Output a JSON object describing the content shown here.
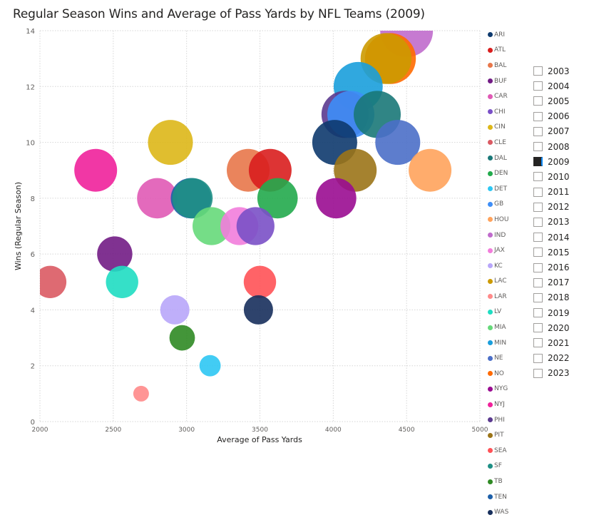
{
  "title": "Regular Season Wins and Average of Pass Yards by NFL Teams (2009)",
  "chart_data": {
    "type": "scatter",
    "subtype": "bubble",
    "title": "Regular Season Wins and Average of Pass Yards by NFL Teams (2009)",
    "xlabel": "Average of Pass Yards",
    "ylabel": "Wins (Regular Season)",
    "xlim": [
      2000,
      5000
    ],
    "ylim": [
      0,
      14
    ],
    "xticks": [
      "2000",
      "2500",
      "3000",
      "3500",
      "4000",
      "4500",
      "5000"
    ],
    "yticks": [
      "0",
      "2",
      "4",
      "6",
      "8",
      "10",
      "12",
      "14"
    ],
    "grid": true,
    "legend_position": "right",
    "points": [
      {
        "team": "IND",
        "x": 4500,
        "y": 14,
        "size": 14,
        "color": "#C06BCC"
      },
      {
        "team": "NO",
        "x": 4390,
        "y": 13,
        "size": 13,
        "color": "#FF6A00"
      },
      {
        "team": "LAC",
        "x": 4360,
        "y": 13,
        "size": 13,
        "color": "#CC9A00"
      },
      {
        "team": "MIN",
        "x": 4170,
        "y": 12,
        "size": 12,
        "color": "#1A9EDB"
      },
      {
        "team": "PHI",
        "x": 4080,
        "y": 11,
        "size": 11,
        "color": "#5B3A8F"
      },
      {
        "team": "GB",
        "x": 4120,
        "y": 11,
        "size": 11,
        "color": "#3E8EF7"
      },
      {
        "team": "DAL",
        "x": 4300,
        "y": 11,
        "size": 11,
        "color": "#1A7878"
      },
      {
        "team": "ARI",
        "x": 4010,
        "y": 10,
        "size": 10,
        "color": "#0E3A6E"
      },
      {
        "team": "NE",
        "x": 4440,
        "y": 10,
        "size": 10,
        "color": "#4B6FC8"
      },
      {
        "team": "CIN",
        "x": 2890,
        "y": 10,
        "size": 10,
        "color": "#DDB718"
      },
      {
        "team": "PIT",
        "x": 4150,
        "y": 9,
        "size": 9,
        "color": "#9B7418"
      },
      {
        "team": "HOU",
        "x": 4660,
        "y": 9,
        "size": 9,
        "color": "#FFA35C"
      },
      {
        "team": "BAL",
        "x": 3420,
        "y": 9,
        "size": 9,
        "color": "#E8774A"
      },
      {
        "team": "ATL",
        "x": 3570,
        "y": 9,
        "size": 9,
        "color": "#D91E1E"
      },
      {
        "team": "NYJ",
        "x": 2380,
        "y": 9,
        "size": 9,
        "color": "#F0219B"
      },
      {
        "team": "NYG",
        "x": 4020,
        "y": 8,
        "size": 8,
        "color": "#9A0C91"
      },
      {
        "team": "DEN",
        "x": 3620,
        "y": 8,
        "size": 8,
        "color": "#22AA4C"
      },
      {
        "team": "CAR",
        "x": 2800,
        "y": 8,
        "size": 8,
        "color": "#E05AB5"
      },
      {
        "team": "TEN",
        "x": 3030,
        "y": 8,
        "size": 8,
        "color": "#1D5FA8"
      },
      {
        "team": "SF",
        "x": 3040,
        "y": 8,
        "size": 8,
        "color": "#1E8F85"
      },
      {
        "team": "MIA",
        "x": 3170,
        "y": 7,
        "size": 7,
        "color": "#66D97A"
      },
      {
        "team": "JAX",
        "x": 3360,
        "y": 7,
        "size": 7,
        "color": "#F27DDB"
      },
      {
        "team": "CHI",
        "x": 3470,
        "y": 7,
        "size": 7,
        "color": "#7A50C7"
      },
      {
        "team": "BUF",
        "x": 2510,
        "y": 6,
        "size": 6,
        "color": "#721C85"
      },
      {
        "team": "CLE",
        "x": 2070,
        "y": 5,
        "size": 5,
        "color": "#DA5A63"
      },
      {
        "team": "LV",
        "x": 2560,
        "y": 5,
        "size": 5,
        "color": "#1FDDC2"
      },
      {
        "team": "SEA",
        "x": 3500,
        "y": 5,
        "size": 5,
        "color": "#FF5257"
      },
      {
        "team": "KC",
        "x": 2920,
        "y": 4,
        "size": 4,
        "color": "#B8A6FA"
      },
      {
        "team": "WAS",
        "x": 3490,
        "y": 4,
        "size": 4,
        "color": "#172F5C"
      },
      {
        "team": "TB",
        "x": 2970,
        "y": 3,
        "size": 3,
        "color": "#2F8A24"
      },
      {
        "team": "DET",
        "x": 3160,
        "y": 2,
        "size": 2,
        "color": "#2EC7F3"
      },
      {
        "team": "LAR",
        "x": 2690,
        "y": 1,
        "size": 1,
        "color": "#FF8A8A"
      }
    ]
  },
  "legend": [
    {
      "label": "ARI",
      "color": "#0E3A6E"
    },
    {
      "label": "ATL",
      "color": "#D91E1E"
    },
    {
      "label": "BAL",
      "color": "#E8774A"
    },
    {
      "label": "BUF",
      "color": "#721C85"
    },
    {
      "label": "CAR",
      "color": "#E05AB5"
    },
    {
      "label": "CHI",
      "color": "#7A50C7"
    },
    {
      "label": "CIN",
      "color": "#DDB718"
    },
    {
      "label": "CLE",
      "color": "#DA5A63"
    },
    {
      "label": "DAL",
      "color": "#1A7878"
    },
    {
      "label": "DEN",
      "color": "#22AA4C"
    },
    {
      "label": "DET",
      "color": "#2EC7F3"
    },
    {
      "label": "GB",
      "color": "#3E8EF7"
    },
    {
      "label": "HOU",
      "color": "#FFA35C"
    },
    {
      "label": "IND",
      "color": "#C06BCC"
    },
    {
      "label": "JAX",
      "color": "#F27DDB"
    },
    {
      "label": "KC",
      "color": "#B8A6FA"
    },
    {
      "label": "LAC",
      "color": "#CC9A00"
    },
    {
      "label": "LAR",
      "color": "#FF8A8A"
    },
    {
      "label": "LV",
      "color": "#1FDDC2"
    },
    {
      "label": "MIA",
      "color": "#66D97A"
    },
    {
      "label": "MIN",
      "color": "#1A9EDB"
    },
    {
      "label": "NE",
      "color": "#4B6FC8"
    },
    {
      "label": "NO",
      "color": "#FF6A00"
    },
    {
      "label": "NYG",
      "color": "#9A0C91"
    },
    {
      "label": "NYJ",
      "color": "#F0219B"
    },
    {
      "label": "PHI",
      "color": "#5B3A8F"
    },
    {
      "label": "PIT",
      "color": "#9B7418"
    },
    {
      "label": "SEA",
      "color": "#FF5257"
    },
    {
      "label": "SF",
      "color": "#1E8F85"
    },
    {
      "label": "TB",
      "color": "#2F8A24"
    },
    {
      "label": "TEN",
      "color": "#1D5FA8"
    },
    {
      "label": "WAS",
      "color": "#172F5C"
    }
  ],
  "slicer": {
    "items": [
      {
        "label": "2003",
        "checked": false
      },
      {
        "label": "2004",
        "checked": false
      },
      {
        "label": "2005",
        "checked": false
      },
      {
        "label": "2006",
        "checked": false
      },
      {
        "label": "2007",
        "checked": false
      },
      {
        "label": "2008",
        "checked": false
      },
      {
        "label": "2009",
        "checked": true
      },
      {
        "label": "2010",
        "checked": false
      },
      {
        "label": "2011",
        "checked": false
      },
      {
        "label": "2012",
        "checked": false
      },
      {
        "label": "2013",
        "checked": false
      },
      {
        "label": "2014",
        "checked": false
      },
      {
        "label": "2015",
        "checked": false
      },
      {
        "label": "2016",
        "checked": false
      },
      {
        "label": "2017",
        "checked": false
      },
      {
        "label": "2018",
        "checked": false
      },
      {
        "label": "2019",
        "checked": false
      },
      {
        "label": "2020",
        "checked": false
      },
      {
        "label": "2021",
        "checked": false
      },
      {
        "label": "2022",
        "checked": false
      },
      {
        "label": "2023",
        "checked": false
      }
    ]
  }
}
